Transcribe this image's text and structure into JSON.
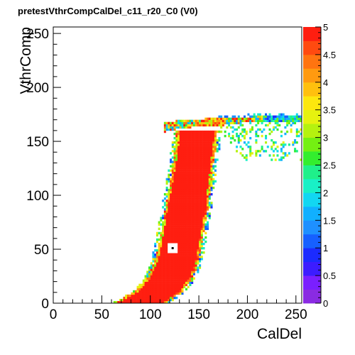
{
  "chart_data": {
    "type": "heatmap",
    "title": "pretestVthrCompCalDel_c11_r20_C0 (V0)",
    "xlabel": "CalDel",
    "ylabel": "VthrComp",
    "xlim": [
      0,
      256
    ],
    "ylim": [
      0,
      256
    ],
    "x_ticks": [
      0,
      50,
      100,
      150,
      200,
      250
    ],
    "y_ticks": [
      0,
      50,
      100,
      150,
      200,
      250
    ],
    "zlim": [
      0,
      5
    ],
    "z_ticks": [
      0,
      0.5,
      1,
      1.5,
      2,
      2.5,
      3,
      3.5,
      4,
      4.5,
      5
    ],
    "z_tick_labels": [
      "0",
      "0.5",
      "1",
      "1.5",
      "2",
      "2.5",
      "3",
      "3.5",
      "4",
      "4.5",
      "5"
    ],
    "palette": [
      "#8a2be2",
      "#7a1fff",
      "#3c1cff",
      "#1b2bff",
      "#1660ff",
      "#1e90ff",
      "#11b0ff",
      "#12d7f2",
      "#19f0c6",
      "#1ff08a",
      "#33ee2e",
      "#74f012",
      "#b5f20f",
      "#e6f20f",
      "#fde70e",
      "#ffc00e",
      "#ff9a10",
      "#ff7410",
      "#ff4a10",
      "#ff1e10"
    ],
    "efficient_region_value": 5,
    "efficient_region": {
      "vthr_edges": [
        0,
        10,
        20,
        30,
        40,
        50,
        60,
        70,
        80,
        90,
        100,
        110,
        120,
        130,
        140,
        150,
        157,
        160
      ],
      "caldel_min": [
        64,
        84,
        94,
        100,
        104,
        107,
        109,
        111,
        113,
        115,
        117,
        119,
        121,
        123,
        124,
        126,
        126,
        127
      ],
      "caldel_max": [
        116,
        132,
        140,
        146,
        149,
        151,
        153,
        155,
        157,
        159,
        160,
        162,
        163,
        164,
        166,
        167,
        168,
        169
      ]
    },
    "upper_boundary_band": {
      "caldel": [
        114,
        125,
        140,
        155,
        165,
        175,
        190,
        205,
        220,
        235,
        250,
        256
      ],
      "vthr_low": [
        158,
        160,
        162,
        164,
        163,
        164,
        166,
        167,
        168,
        168,
        168,
        168
      ],
      "vthr_high": [
        166,
        168,
        169,
        170,
        170,
        170,
        171,
        172,
        172,
        172,
        172,
        172
      ]
    },
    "noise_spread": {
      "caldel_from": 170,
      "caldel_to": 256,
      "vthr_low": [
        164,
        152,
        120
      ],
      "vthr_high": [
        172,
        173,
        170
      ]
    },
    "lower_fringe_offset": 3,
    "masked_marker": {
      "x": 123,
      "y": 51,
      "z": 0
    }
  }
}
